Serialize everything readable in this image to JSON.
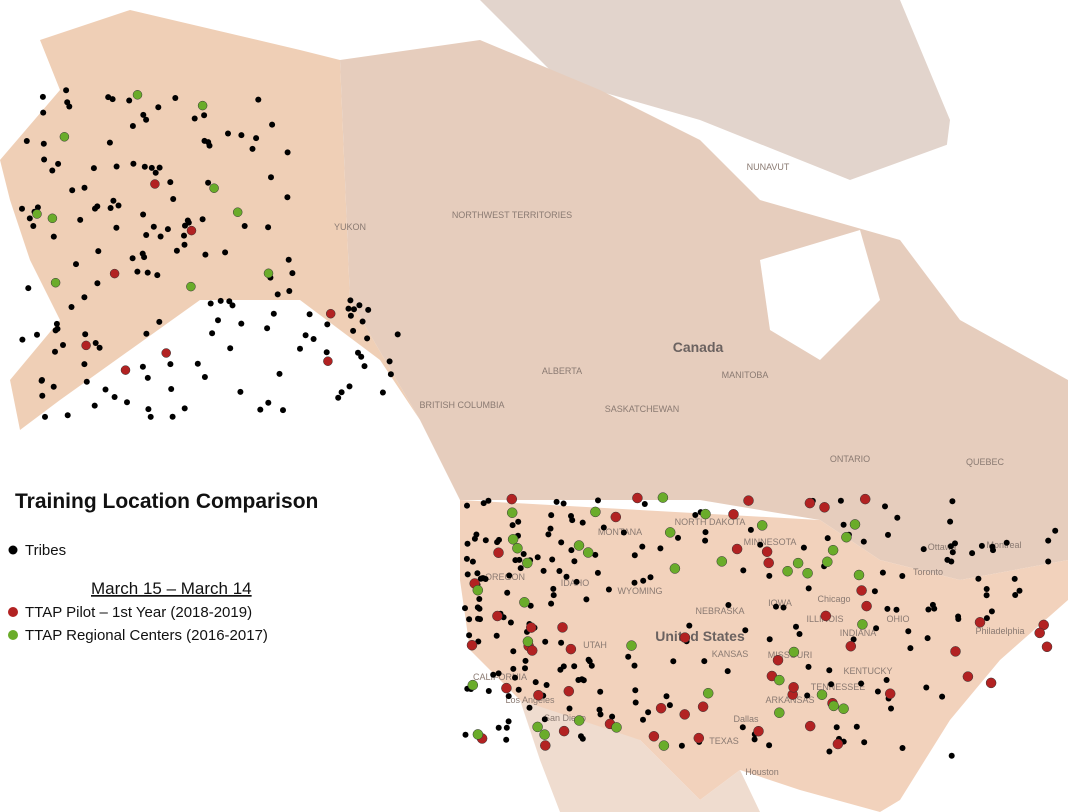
{
  "title": "Training Location Comparison",
  "legend": {
    "tribes": "Tribes",
    "period": "March 15 – March 14",
    "pilot": "TTAP Pilot – 1st Year (2018-2019)",
    "regional": "TTAP Regional Centers (2016-2017)"
  },
  "map_labels": [
    "Canada",
    "United States",
    "NUNAVUT",
    "NORTHWEST TERRITORIES",
    "YUKON",
    "ALBERTA",
    "BRITISH COLUMBIA",
    "SASKATCHEWAN",
    "MANITOBA",
    "ONTARIO",
    "QUEBEC",
    "MONTANA",
    "NORTH DAKOTA",
    "MINNESOTA",
    "OREGON",
    "IDAHO",
    "WYOMING",
    "NEBRASKA",
    "IOWA",
    "ILLINOIS",
    "INDIANA",
    "OHIO",
    "KANSAS",
    "MISSOURI",
    "UTAH",
    "CALIFORNIA",
    "KENTUCKY",
    "TENNESSEE",
    "TEXAS",
    "ARKANSAS",
    "Ottawa",
    "Montreal",
    "Toronto",
    "Chicago",
    "Philadelphia",
    "Dallas",
    "Houston",
    "San Diego",
    "Los Angeles"
  ]
}
